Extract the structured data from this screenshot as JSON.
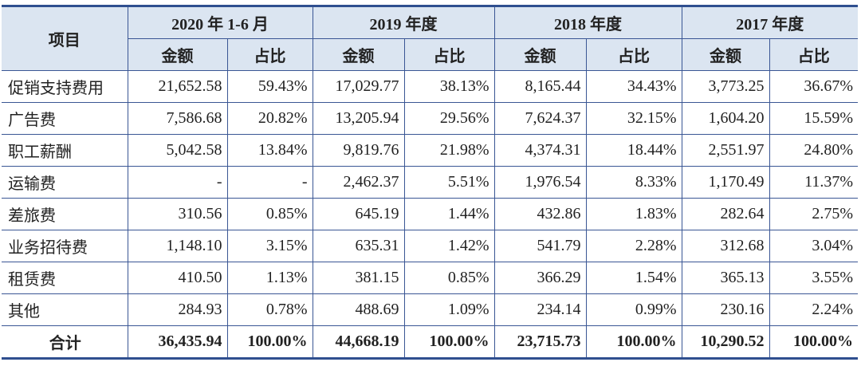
{
  "header": {
    "item": "项目",
    "periods": [
      "2020 年 1-6 月",
      "2019 年度",
      "2018 年度",
      "2017 年度"
    ],
    "amount": "金额",
    "ratio": "占比"
  },
  "rows": [
    {
      "label": "促销支持费用",
      "values": [
        "21,652.58",
        "59.43%",
        "17,029.77",
        "38.13%",
        "8,165.44",
        "34.43%",
        "3,773.25",
        "36.67%"
      ]
    },
    {
      "label": "广告费",
      "values": [
        "7,586.68",
        "20.82%",
        "13,205.94",
        "29.56%",
        "7,624.37",
        "32.15%",
        "1,604.20",
        "15.59%"
      ]
    },
    {
      "label": "职工薪酬",
      "values": [
        "5,042.58",
        "13.84%",
        "9,819.76",
        "21.98%",
        "4,374.31",
        "18.44%",
        "2,551.97",
        "24.80%"
      ]
    },
    {
      "label": "运输费",
      "values": [
        "-",
        "-",
        "2,462.37",
        "5.51%",
        "1,976.54",
        "8.33%",
        "1,170.49",
        "11.37%"
      ]
    },
    {
      "label": "差旅费",
      "values": [
        "310.56",
        "0.85%",
        "645.19",
        "1.44%",
        "432.86",
        "1.83%",
        "282.64",
        "2.75%"
      ]
    },
    {
      "label": "业务招待费",
      "values": [
        "1,148.10",
        "3.15%",
        "635.31",
        "1.42%",
        "541.79",
        "2.28%",
        "312.68",
        "3.04%"
      ]
    },
    {
      "label": "租赁费",
      "values": [
        "410.50",
        "1.13%",
        "381.15",
        "0.85%",
        "366.29",
        "1.54%",
        "365.13",
        "3.55%"
      ]
    },
    {
      "label": "其他",
      "values": [
        "284.93",
        "0.78%",
        "488.69",
        "1.09%",
        "234.14",
        "0.99%",
        "230.16",
        "2.24%"
      ]
    }
  ],
  "total": {
    "label": "合计",
    "values": [
      "36,435.94",
      "100.00%",
      "44,668.19",
      "100.00%",
      "23,715.73",
      "100.00%",
      "10,290.52",
      "100.00%"
    ]
  }
}
